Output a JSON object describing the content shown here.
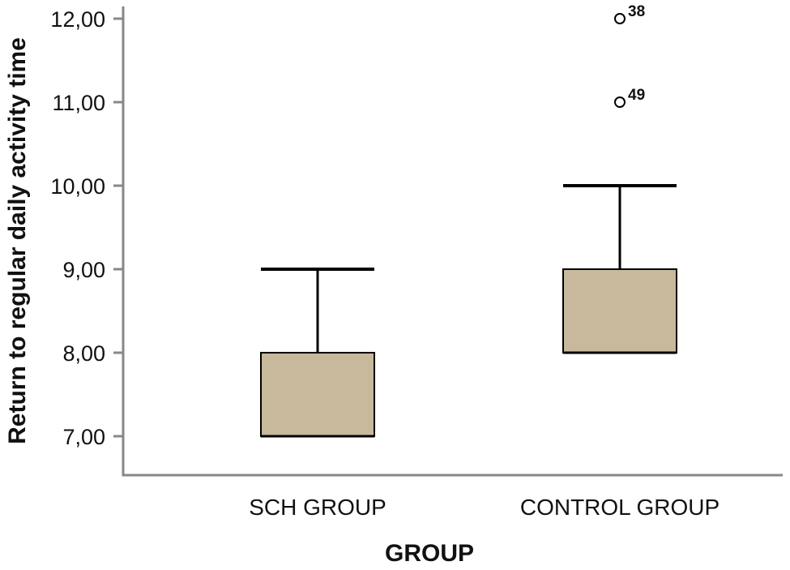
{
  "chart_data": {
    "type": "box",
    "title": "",
    "xlabel": "GROUP",
    "ylabel": "Return to regular daily activity time",
    "ylim": [
      6.5,
      12.2
    ],
    "yticks": [
      7,
      8,
      9,
      10,
      11,
      12
    ],
    "ytick_labels": [
      "7,00",
      "8,00",
      "9,00",
      "10,00",
      "11,00",
      "12,00"
    ],
    "categories": [
      "SCH GROUP",
      "CONTROL GROUP"
    ],
    "boxes": [
      {
        "category": "SCH GROUP",
        "min": 7,
        "q1": 7,
        "median": 7,
        "q3": 8,
        "max": 9,
        "outliers": []
      },
      {
        "category": "CONTROL GROUP",
        "min": 8,
        "q1": 8,
        "median": 8,
        "q3": 9,
        "max": 10,
        "outliers": [
          {
            "value": 12,
            "label": "38"
          },
          {
            "value": 11,
            "label": "49"
          }
        ]
      }
    ],
    "box_color": "#c8b99c",
    "grid": false,
    "legend": "none"
  }
}
